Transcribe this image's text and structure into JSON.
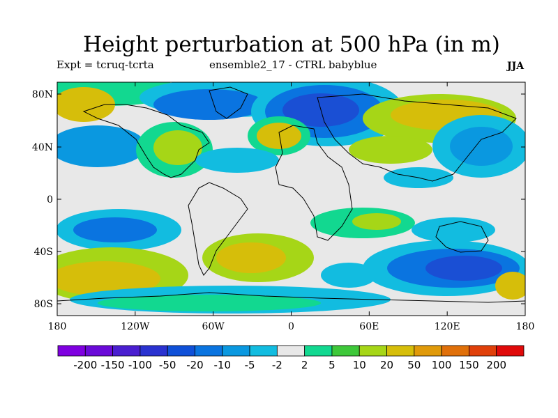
{
  "title": "Height perturbation at 500 hPa (in m)",
  "subtitle_left": "Expt = tcruq-tcrta",
  "subtitle_center": "ensemble2_17 - CTRL babyblue",
  "subtitle_right": "JJA",
  "lat_ticks": [
    "80N",
    "40N",
    "0",
    "40S",
    "80S"
  ],
  "lon_ticks": [
    "180",
    "120W",
    "60W",
    "0",
    "60E",
    "120E",
    "180"
  ],
  "colorbar": {
    "colors": [
      "#7f00e0",
      "#6a0ad8",
      "#4a1ed0",
      "#2a32d0",
      "#0f50d8",
      "#0a74e0",
      "#0a98e0",
      "#12bce0",
      "#e8e8e8",
      "#12d890",
      "#3ec83a",
      "#a6d617",
      "#d6be0a",
      "#e09a0a",
      "#e0700a",
      "#e0400a",
      "#e00a0a"
    ],
    "labels": [
      "-200",
      "-150",
      "-100",
      "-50",
      "-20",
      "-10",
      "-5",
      "-2",
      "2",
      "5",
      "10",
      "20",
      "50",
      "100",
      "150",
      "200"
    ]
  },
  "colors": {
    "neutral": "#e8e8e8",
    "blue_dark": "#1a4fd4",
    "blue_mid": "#0a74e0",
    "blue_light": "#0a98e0",
    "cyan": "#12bce0",
    "teal": "#12d890",
    "green": "#3ec83a",
    "yellowgreen": "#a6d617",
    "gold": "#d6be0a"
  }
}
